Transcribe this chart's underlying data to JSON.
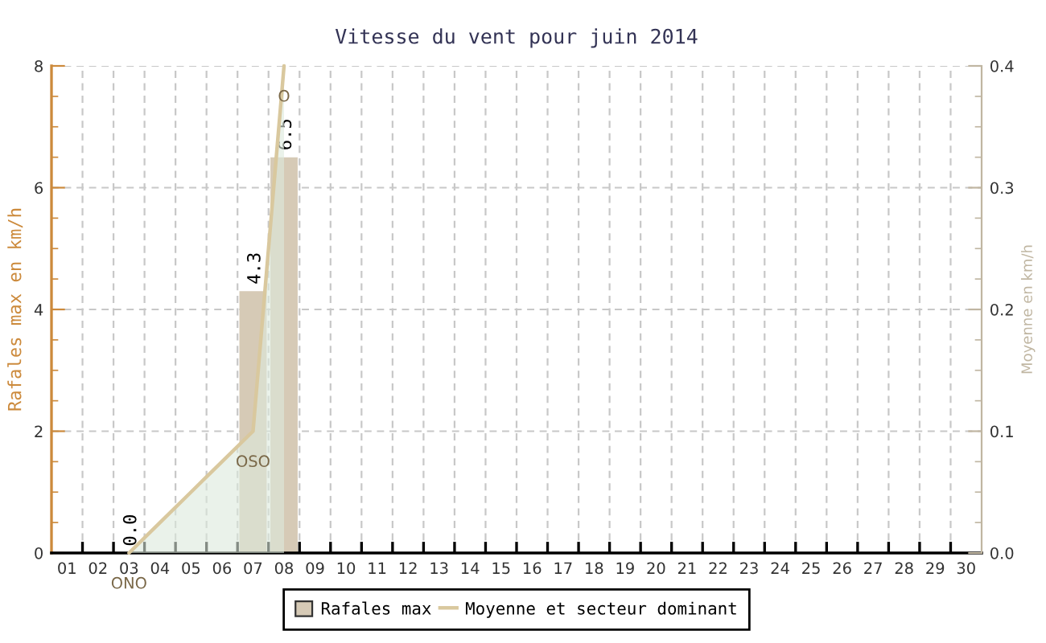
{
  "chart_data": {
    "type": "bar",
    "title": "Vitesse du vent pour juin 2014",
    "ylabel": "Rafales max en km/h",
    "y2label": "Moyenne en km/h",
    "categories": [
      "01",
      "02",
      "03",
      "04",
      "05",
      "06",
      "07",
      "08",
      "09",
      "10",
      "11",
      "12",
      "13",
      "14",
      "15",
      "16",
      "17",
      "18",
      "19",
      "20",
      "21",
      "22",
      "23",
      "24",
      "25",
      "26",
      "27",
      "28",
      "29",
      "30"
    ],
    "series": [
      {
        "name": "Rafales max",
        "color": "#d6cab6",
        "values": [
          null,
          null,
          0,
          null,
          null,
          null,
          4.3,
          6.5,
          null,
          null,
          null,
          null,
          null,
          null,
          null,
          null,
          null,
          null,
          null,
          null,
          null,
          null,
          null,
          null,
          null,
          null,
          null,
          null,
          null,
          null
        ],
        "value_labels": [
          null,
          null,
          "0.0",
          null,
          null,
          null,
          "4.3",
          "6.5",
          null,
          null,
          null,
          null,
          null,
          null,
          null,
          null,
          null,
          null,
          null,
          null,
          null,
          null,
          null,
          null,
          null,
          null,
          null,
          null,
          null,
          null
        ]
      },
      {
        "name": "Moyenne et secteur dominant",
        "type": "area",
        "axis": "y2",
        "color": "#d9c89e",
        "values": [
          null,
          null,
          0,
          0.025,
          0.05,
          0.075,
          0.1,
          0.4,
          null,
          null,
          null,
          null,
          null,
          null,
          null,
          null,
          null,
          null,
          null,
          null,
          null,
          null,
          null,
          null,
          null,
          null,
          null,
          null,
          null,
          null
        ],
        "value_labels": [
          null,
          null,
          "ONO",
          null,
          null,
          null,
          "OSO",
          "O",
          null,
          null,
          null,
          null,
          null,
          null,
          null,
          null,
          null,
          null,
          null,
          null,
          null,
          null,
          null,
          null,
          null,
          null,
          null,
          null,
          null,
          null
        ]
      }
    ],
    "ylim": [
      0,
      8
    ],
    "yticks": [
      0,
      2,
      4,
      6,
      8
    ],
    "y2lim": [
      0,
      0.4
    ],
    "y2ticks": [
      {
        "value": 0,
        "label": "0.0"
      },
      {
        "value": 0.1,
        "label": "0.1"
      },
      {
        "value": 0.2,
        "label": "0.2"
      },
      {
        "value": 0.3,
        "label": "0.3"
      },
      {
        "value": 0.4,
        "label": "0.4"
      }
    ],
    "grid": true,
    "legend": "bottom",
    "marker": "none",
    "line_style": "solid"
  }
}
